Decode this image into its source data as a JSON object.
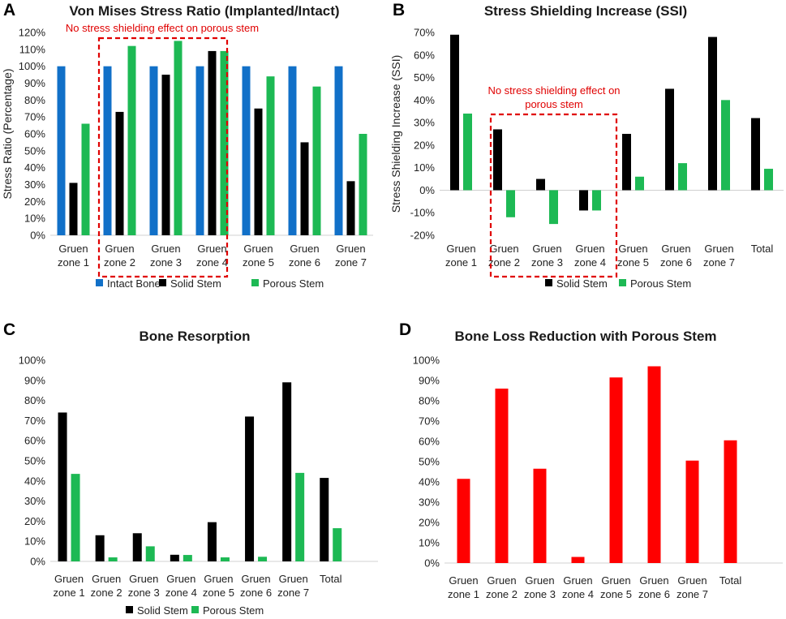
{
  "chart_data": [
    {
      "id": "A",
      "panel_label": "A",
      "type": "bar",
      "title": "Von Mises Stress Ratio (Implanted/Intact)",
      "ylabel": "Stress Ratio (Percentage)",
      "xlabel": "",
      "ylim": [
        0,
        120
      ],
      "ytick_step": 10,
      "categories": [
        [
          "Gruen",
          "zone 1"
        ],
        [
          "Gruen",
          "zone 2"
        ],
        [
          "Gruen",
          "zone 3"
        ],
        [
          "Gruen",
          "zone 4"
        ],
        [
          "Gruen",
          "zone 5"
        ],
        [
          "Gruen",
          "zone 6"
        ],
        [
          "Gruen",
          "zone 7"
        ]
      ],
      "series": [
        {
          "name": "Intact Bone",
          "color": "#1170c8",
          "values": [
            100,
            100,
            100,
            100,
            100,
            100,
            100
          ]
        },
        {
          "name": "Solid Stem",
          "color": "#000000",
          "values": [
            31,
            73,
            95,
            109,
            75,
            55,
            32
          ]
        },
        {
          "name": "Porous Stem",
          "color": "#1db954",
          "values": [
            66,
            112,
            115,
            109,
            94,
            88,
            60
          ]
        }
      ],
      "legend": "bottom",
      "annotation": {
        "text": [
          "No stress shielding effect on porous stem"
        ],
        "color": "#e00000",
        "box_categories": [
          1,
          3
        ]
      }
    },
    {
      "id": "B",
      "panel_label": "B",
      "type": "bar",
      "title": "Stress Shielding Increase (SSI)",
      "ylabel": "Stress Shielding Increase (SSI)",
      "xlabel": "",
      "ylim": [
        -20,
        70
      ],
      "ytick_step": 10,
      "categories": [
        [
          "Gruen",
          "zone 1"
        ],
        [
          "Gruen",
          "zone 2"
        ],
        [
          "Gruen",
          "zone 3"
        ],
        [
          "Gruen",
          "zone 4"
        ],
        [
          "Gruen",
          "zone 5"
        ],
        [
          "Gruen",
          "zone 6"
        ],
        [
          "Gruen",
          "zone 7"
        ],
        [
          "Total"
        ]
      ],
      "series": [
        {
          "name": "Solid Stem",
          "color": "#000000",
          "values": [
            69,
            27,
            5,
            -9,
            25,
            45,
            68,
            32
          ]
        },
        {
          "name": "Porous Stem",
          "color": "#1db954",
          "values": [
            34,
            -12,
            -15,
            -9,
            6,
            12,
            40,
            9.5
          ]
        }
      ],
      "legend": "bottom",
      "annotation": {
        "text": [
          "No stress shielding effect on",
          "porous stem"
        ],
        "color": "#e00000",
        "box_categories": [
          1,
          3
        ]
      }
    },
    {
      "id": "C",
      "panel_label": "C",
      "type": "bar",
      "title": "Bone Resorption",
      "ylabel": "",
      "xlabel": "",
      "ylim": [
        0,
        100
      ],
      "ytick_step": 10,
      "categories": [
        [
          "Gruen",
          "zone 1"
        ],
        [
          "Gruen",
          "zone 2"
        ],
        [
          "Gruen",
          "zone 3"
        ],
        [
          "Gruen",
          "zone 4"
        ],
        [
          "Gruen",
          "zone 5"
        ],
        [
          "Gruen",
          "zone 6"
        ],
        [
          "Gruen",
          "zone 7"
        ],
        [
          "Total"
        ]
      ],
      "series": [
        {
          "name": "Solid Stem",
          "color": "#000000",
          "values": [
            74,
            13,
            14,
            3.3,
            19.5,
            72,
            89,
            41.5
          ]
        },
        {
          "name": "Porous Stem",
          "color": "#1db954",
          "values": [
            43.5,
            2,
            7.5,
            3.2,
            2,
            2.3,
            44,
            16.5
          ]
        }
      ],
      "legend": "bottom"
    },
    {
      "id": "D",
      "panel_label": "D",
      "type": "bar",
      "title": "Bone Loss Reduction with Porous Stem",
      "ylabel": "",
      "xlabel": "",
      "ylim": [
        0,
        100
      ],
      "ytick_step": 10,
      "categories": [
        [
          "Gruen",
          "zone 1"
        ],
        [
          "Gruen",
          "zone 2"
        ],
        [
          "Gruen",
          "zone 3"
        ],
        [
          "Gruen",
          "zone 4"
        ],
        [
          "Gruen",
          "zone 5"
        ],
        [
          "Gruen",
          "zone 6"
        ],
        [
          "Gruen",
          "zone 7"
        ],
        [
          "Total"
        ]
      ],
      "series": [
        {
          "name": "Bone Loss Reduction",
          "color": "#ff0000",
          "values": [
            41.5,
            86,
            46.5,
            3,
            91.5,
            97,
            50.5,
            60.5
          ]
        }
      ],
      "legend": "none"
    }
  ]
}
